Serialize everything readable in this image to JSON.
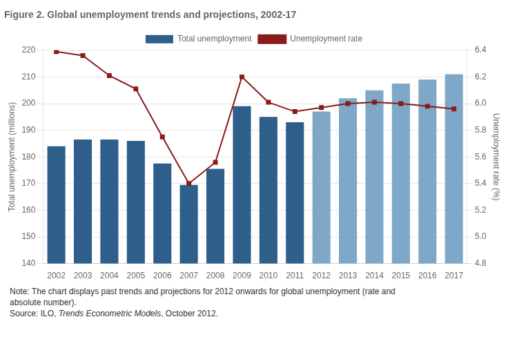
{
  "chart_data": {
    "type": "bar",
    "title": "Figure 2. Global unemployment trends and projections, 2002-17",
    "categories": [
      "2002",
      "2003",
      "2004",
      "2005",
      "2006",
      "2007",
      "2008",
      "2009",
      "2010",
      "2011",
      "2012",
      "2013",
      "2014",
      "2015",
      "2016",
      "2017"
    ],
    "series": [
      {
        "name": "Total unemployment",
        "type": "bar",
        "colors": [
          "#2E5F8A",
          "#2E5F8A",
          "#2E5F8A",
          "#2E5F8A",
          "#2E5F8A",
          "#2E5F8A",
          "#2E5F8A",
          "#2E5F8A",
          "#2E5F8A",
          "#2E5F8A",
          "#7FA8C8",
          "#7FA8C8",
          "#7FA8C8",
          "#7FA8C8",
          "#7FA8C8",
          "#7FA8C8"
        ],
        "values": [
          184,
          186.5,
          186.5,
          186,
          177.5,
          169.5,
          175.5,
          199,
          195,
          193,
          197,
          202,
          205,
          207.5,
          209,
          211
        ]
      },
      {
        "name": "Unemployment rate",
        "type": "line",
        "axis": "y2",
        "color": "#8B1A1A",
        "marker": "square",
        "line_style": "solid",
        "values": [
          6.39,
          6.36,
          6.21,
          6.11,
          5.75,
          5.4,
          5.56,
          6.2,
          6.01,
          5.94,
          5.97,
          6.0,
          6.01,
          6.0,
          5.98,
          5.96
        ]
      }
    ],
    "ylabel": "Total unemployment (millions)",
    "y2label": "Unemployment rate (%)",
    "ylim": [
      140,
      220
    ],
    "yticks": [
      140,
      150,
      160,
      170,
      180,
      190,
      200,
      210,
      220
    ],
    "y2lim": [
      4.8,
      6.4
    ],
    "y2ticks": [
      4.8,
      {
        "value": 5.0,
        "label": "5.0"
      },
      5.2,
      5.4,
      5.6,
      5.8,
      {
        "value": 6.0,
        "label": "6.0"
      },
      6.2,
      6.4
    ],
    "grid": true,
    "legend": "top",
    "annotations": [
      "Note: The chart displays past trends and projections for 2012 onwards for global unemployment (rate and",
      "absolute number).",
      [
        "Source: ILO, ",
        "Trends Econometric Models",
        ", October 2012."
      ]
    ]
  }
}
